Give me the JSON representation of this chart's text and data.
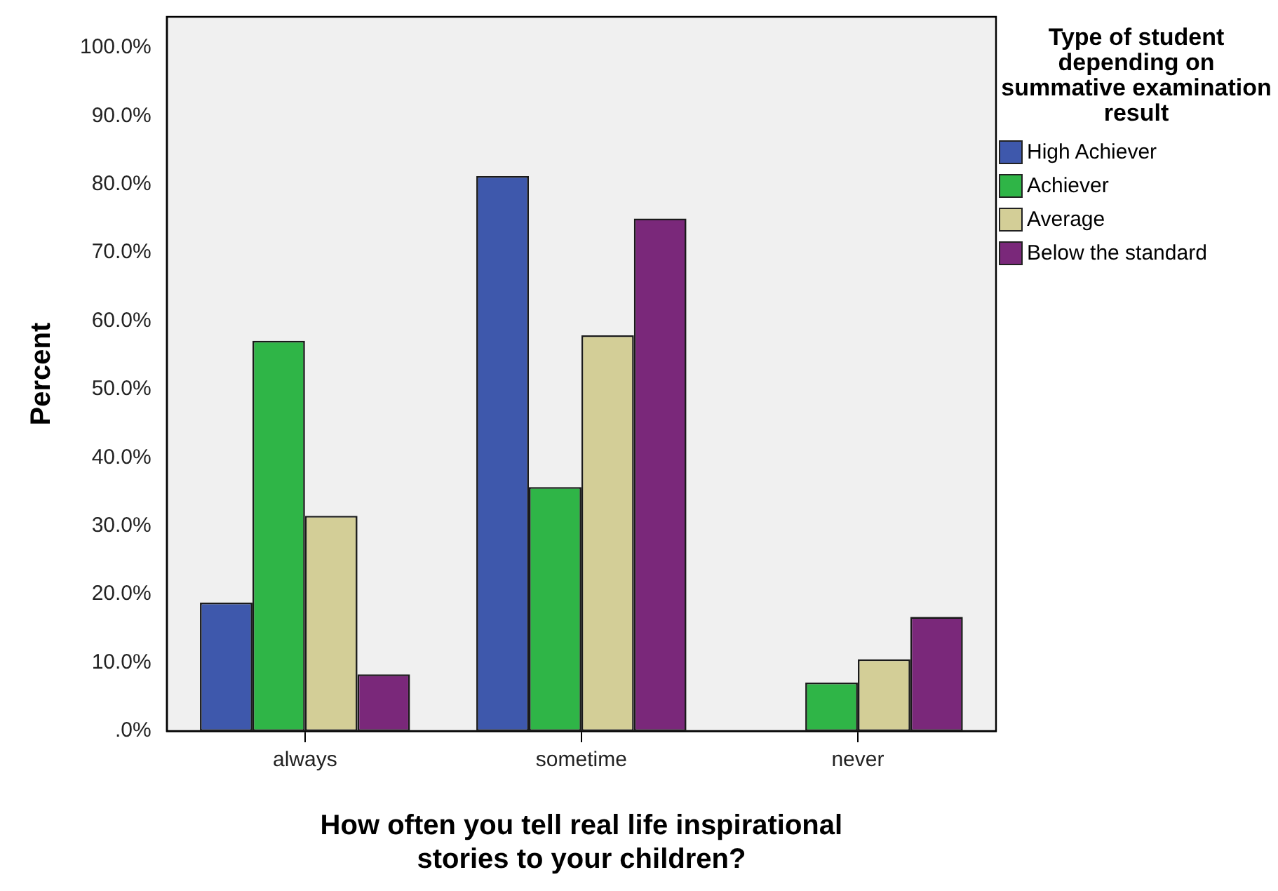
{
  "chart_data": {
    "type": "bar",
    "xlabel": "How often you tell real life inspirational\nstories to your children?",
    "ylabel": "Percent",
    "legend_title": "Type of student depending on summative examination result",
    "categories": [
      "always",
      "sometime",
      "never"
    ],
    "series": [
      {
        "name": "High Achiever",
        "color": "#3e58ac",
        "values": [
          18.8,
          81.2,
          0
        ]
      },
      {
        "name": "Achiever",
        "color": "#2fb547",
        "values": [
          57.1,
          35.7,
          7.1
        ]
      },
      {
        "name": "Average",
        "color": "#d3ce97",
        "values": [
          31.5,
          57.9,
          10.5
        ]
      },
      {
        "name": "Below the standard",
        "color": "#7a287a",
        "values": [
          8.3,
          75.0,
          16.7
        ]
      }
    ],
    "ylim": [
      0,
      104.5
    ],
    "yticks": [
      {
        "value": 0,
        "label": ".0%"
      },
      {
        "value": 10,
        "label": "10.0%"
      },
      {
        "value": 20,
        "label": "20.0%"
      },
      {
        "value": 30,
        "label": "30.0%"
      },
      {
        "value": 40,
        "label": "40.0%"
      },
      {
        "value": 50,
        "label": "50.0%"
      },
      {
        "value": 60,
        "label": "60.0%"
      },
      {
        "value": 70,
        "label": "70.0%"
      },
      {
        "value": 80,
        "label": "80.0%"
      },
      {
        "value": 90,
        "label": "90.0%"
      },
      {
        "value": 100,
        "label": "100.0%"
      }
    ],
    "grid": false,
    "legend": "right"
  }
}
